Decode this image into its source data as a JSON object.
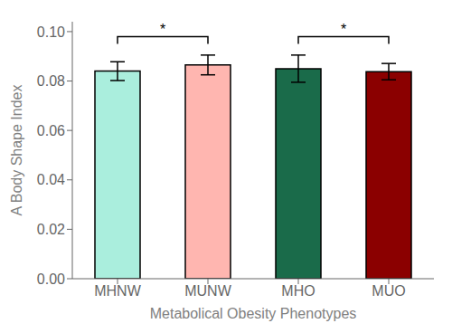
{
  "chart_data": {
    "type": "bar",
    "categories": [
      "MHNW",
      "MUNW",
      "MHO",
      "MUO"
    ],
    "values": [
      0.084,
      0.0865,
      0.085,
      0.0838
    ],
    "errors": [
      0.0038,
      0.004,
      0.0055,
      0.0033
    ],
    "colors": [
      "#aaeedd",
      "#ffb6b0",
      "#1a6b4a",
      "#8b0000"
    ],
    "ylabel": "A Body Shape Index",
    "xlabel": "Metabolical Obesity Phenotypes",
    "ylim": [
      0.0,
      0.104
    ],
    "yticks": [
      {
        "value": 0.0,
        "label": "0.00"
      },
      0.02,
      0.04,
      0.06,
      0.08,
      {
        "value": 0.1,
        "label": "0.10"
      }
    ],
    "annotations": [
      {
        "x1": "MHNW",
        "x2": "MUNW",
        "y": 0.098,
        "label": "*"
      },
      {
        "x1": "MHO",
        "x2": "MUO",
        "y": 0.098,
        "label": "*"
      }
    ],
    "grid": false
  }
}
